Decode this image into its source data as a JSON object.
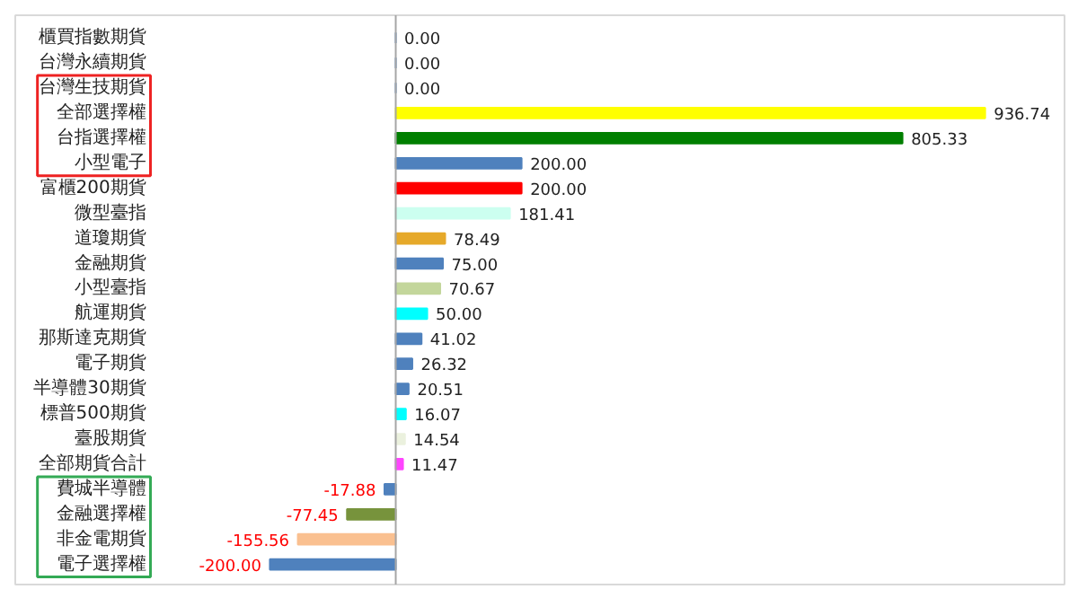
{
  "chart_data": {
    "type": "bar",
    "orientation": "horizontal",
    "grid": false,
    "tick_labels": "y",
    "categories": [
      "櫃買指數期貨",
      "台灣永續期貨",
      "台灣生技期貨",
      "全部選擇權",
      "台指選擇權",
      "小型電子",
      "富櫃200期貨",
      "微型臺指",
      "道瓊期貨",
      "金融期貨",
      "小型臺指",
      "航運期貨",
      "那斯達克期貨",
      "電子期貨",
      "半導體30期貨",
      "標普500期貨",
      "臺股期貨",
      "全部期貨合計",
      "費城半導體",
      "金融選擇權",
      "非金電期貨",
      "電子選擇權"
    ],
    "values": [
      0.0,
      0.0,
      0.0,
      936.74,
      805.33,
      200.0,
      200.0,
      181.41,
      78.49,
      75.0,
      70.67,
      50.0,
      41.02,
      26.32,
      20.51,
      16.07,
      14.54,
      11.47,
      -17.88,
      -77.45,
      -155.56,
      -200.0
    ],
    "value_labels": [
      "0.00",
      "0.00",
      "0.00",
      "936.74",
      "805.33",
      "200.00",
      "200.00",
      "181.41",
      "78.49",
      "75.00",
      "70.67",
      "50.00",
      "41.02",
      "26.32",
      "20.51",
      "16.07",
      "14.54",
      "11.47",
      "-17.88",
      "-77.45",
      "-155.56",
      "-200.00"
    ],
    "colors": [
      "#4f81bd",
      "#4f81bd",
      "#4f81bd",
      "#ffff00",
      "#007f00",
      "#4f81bd",
      "#ff0000",
      "#ccfff0",
      "#e6a92a",
      "#4f81bd",
      "#c3d69b",
      "#00ffff",
      "#4f81bd",
      "#4f81bd",
      "#4f81bd",
      "#00ffff",
      "#ebf1de",
      "#ff44ff",
      "#4f81bd",
      "#77933c",
      "#fac090",
      "#4f81bd"
    ]
  }
}
